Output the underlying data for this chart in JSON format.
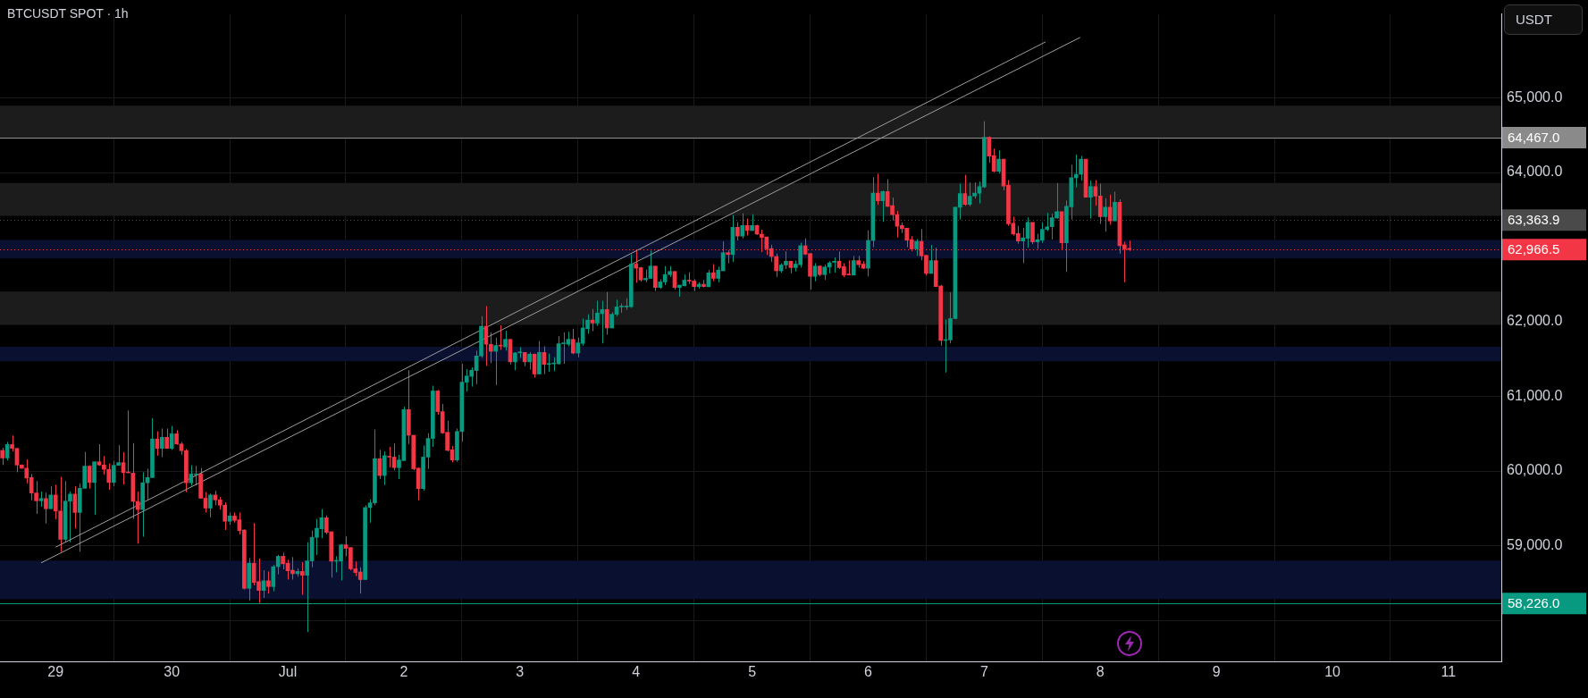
{
  "chart_data": {
    "type": "candlestick",
    "title": "BTCUSDT SPOT · 1h",
    "ylabel": "USDT",
    "legend": false,
    "grid": true,
    "marker": "none",
    "xlim": [
      "--06-28T12:30",
      "--07-11T10:55"
    ],
    "xticks": [
      {
        "value": "--06-29",
        "label": "29"
      },
      {
        "value": "--06-30",
        "label": "30"
      },
      {
        "value": "--07-01",
        "label": "Jul"
      },
      {
        "value": "--07-02",
        "label": "2"
      },
      {
        "value": "--07-03",
        "label": "3"
      },
      {
        "value": "--07-04",
        "label": "4"
      },
      {
        "value": "--07-05",
        "label": "5"
      },
      {
        "value": "--07-06",
        "label": "6"
      },
      {
        "value": "--07-07",
        "label": "7"
      },
      {
        "value": "--07-08",
        "label": "8"
      },
      {
        "value": "--07-09",
        "label": "9"
      },
      {
        "value": "--07-10",
        "label": "10"
      },
      {
        "value": "--07-11",
        "label": "11"
      }
    ],
    "ylim": [
      57450,
      66125
    ],
    "yticks": [
      {
        "value": 58000,
        "label": null
      },
      {
        "value": 59000,
        "label": "59,000.0"
      },
      {
        "value": 60000,
        "label": "60,000.0"
      },
      {
        "value": 61000,
        "label": "61,000.0"
      },
      {
        "value": 62000,
        "label": "62,000.0"
      },
      {
        "value": 63000,
        "label": null
      },
      {
        "value": 64000,
        "label": "64,000.0"
      },
      {
        "value": 65000,
        "label": "65,000.0"
      }
    ],
    "bands": [
      {
        "axis": "y",
        "from": 64450,
        "to": 64895,
        "color": "#1c1c1c"
      },
      {
        "axis": "y",
        "from": 63420,
        "to": 63860,
        "color": "#1c1c1c"
      },
      {
        "axis": "y",
        "from": 62850,
        "to": 63095,
        "color": "#0a1030"
      },
      {
        "axis": "y",
        "from": 61960,
        "to": 62405,
        "color": "#1c1c1c"
      },
      {
        "axis": "y",
        "from": 61470,
        "to": 61665,
        "color": "#0a1030"
      },
      {
        "axis": "y",
        "from": 58285,
        "to": 58800,
        "color": "#0a1030"
      }
    ],
    "ref_lines": [
      {
        "axis": "y",
        "value": 64467,
        "label": "64,467.0",
        "color": "#8a8a8a",
        "line_style": "solid"
      },
      {
        "axis": "y",
        "value": 63363.9,
        "label": "63,363.9",
        "color": "#4a4a4a",
        "line_style": "dotted"
      },
      {
        "axis": "y",
        "value": 62966.5,
        "label": "62,966.5",
        "color": "#f23645",
        "line_style": "dotted"
      },
      {
        "axis": "y",
        "value": 58226,
        "label": "58,226.0",
        "color": "#089981",
        "line_style": "solid"
      }
    ],
    "series": [
      {
        "type": "line",
        "color": "#9e9e9e",
        "x": [
          "--06-29T00:00",
          "--07-07T12:40"
        ],
        "values": [
          58980,
          65750
        ]
      },
      {
        "type": "line",
        "color": "#9e9e9e",
        "x": [
          "--06-28T21:00",
          "--07-07T19:50"
        ],
        "values": [
          58770,
          65810
        ]
      },
      {
        "type": "candlestick",
        "x": [
          "--06-28T13:00",
          "--06-28T14:00",
          "--06-28T15:00",
          "--06-28T16:00",
          "--06-28T17:00",
          "--06-28T18:00",
          "--06-28T19:00",
          "--06-28T20:00",
          "--06-28T21:00",
          "--06-28T22:00",
          "--06-28T23:00",
          "--06-29T00:00",
          "--06-29T01:00",
          "--06-29T02:00",
          "--06-29T03:00",
          "--06-29T04:00",
          "--06-29T05:00",
          "--06-29T06:00",
          "--06-29T07:00",
          "--06-29T08:00",
          "--06-29T09:00",
          "--06-29T10:00",
          "--06-29T11:00",
          "--06-29T12:00",
          "--06-29T13:00",
          "--06-29T14:00",
          "--06-29T15:00",
          "--06-29T16:00",
          "--06-29T17:00",
          "--06-29T18:00",
          "--06-29T19:00",
          "--06-29T20:00",
          "--06-29T21:00",
          "--06-29T22:00",
          "--06-29T23:00",
          "--06-30T00:00",
          "--06-30T01:00",
          "--06-30T02:00",
          "--06-30T03:00",
          "--06-30T04:00",
          "--06-30T05:00",
          "--06-30T06:00",
          "--06-30T07:00",
          "--06-30T08:00",
          "--06-30T09:00",
          "--06-30T10:00",
          "--06-30T11:00",
          "--06-30T12:00",
          "--06-30T13:00",
          "--06-30T14:00",
          "--06-30T15:00",
          "--06-30T16:00",
          "--06-30T17:00",
          "--06-30T18:00",
          "--06-30T19:00",
          "--06-30T20:00",
          "--06-30T21:00",
          "--06-30T22:00",
          "--06-30T23:00",
          "--07-01T00:00",
          "--07-01T01:00",
          "--07-01T02:00",
          "--07-01T03:00",
          "--07-01T04:00",
          "--07-01T05:00",
          "--07-01T06:00",
          "--07-01T07:00",
          "--07-01T08:00",
          "--07-01T09:00",
          "--07-01T10:00",
          "--07-01T11:00",
          "--07-01T12:00",
          "--07-01T13:00",
          "--07-01T14:00",
          "--07-01T15:00",
          "--07-01T16:00",
          "--07-01T17:00",
          "--07-01T18:00",
          "--07-01T19:00",
          "--07-01T20:00",
          "--07-01T21:00",
          "--07-01T22:00",
          "--07-01T23:00",
          "--07-02T00:00",
          "--07-02T01:00",
          "--07-02T02:00",
          "--07-02T03:00",
          "--07-02T04:00",
          "--07-02T05:00",
          "--07-02T06:00",
          "--07-02T07:00",
          "--07-02T08:00",
          "--07-02T09:00",
          "--07-02T10:00",
          "--07-02T11:00",
          "--07-02T12:00",
          "--07-02T13:00",
          "--07-02T14:00",
          "--07-02T15:00",
          "--07-02T16:00",
          "--07-02T17:00",
          "--07-02T18:00",
          "--07-02T19:00",
          "--07-02T20:00",
          "--07-02T21:00",
          "--07-02T22:00",
          "--07-02T23:00",
          "--07-03T00:00",
          "--07-03T01:00",
          "--07-03T02:00",
          "--07-03T03:00",
          "--07-03T04:00",
          "--07-03T05:00",
          "--07-03T06:00",
          "--07-03T07:00",
          "--07-03T08:00",
          "--07-03T09:00",
          "--07-03T10:00",
          "--07-03T11:00",
          "--07-03T12:00",
          "--07-03T13:00",
          "--07-03T14:00",
          "--07-03T15:00",
          "--07-03T16:00",
          "--07-03T17:00",
          "--07-03T18:00",
          "--07-03T19:00",
          "--07-03T20:00",
          "--07-03T21:00",
          "--07-03T22:00",
          "--07-03T23:00",
          "--07-04T00:00",
          "--07-04T01:00",
          "--07-04T02:00",
          "--07-04T03:00",
          "--07-04T04:00",
          "--07-04T05:00",
          "--07-04T06:00",
          "--07-04T07:00",
          "--07-04T08:00",
          "--07-04T09:00",
          "--07-04T10:00",
          "--07-04T11:00",
          "--07-04T12:00",
          "--07-04T13:00",
          "--07-04T14:00",
          "--07-04T15:00",
          "--07-04T16:00",
          "--07-04T17:00",
          "--07-04T18:00",
          "--07-04T19:00",
          "--07-04T20:00",
          "--07-04T21:00",
          "--07-04T22:00",
          "--07-04T23:00",
          "--07-05T00:00",
          "--07-05T01:00",
          "--07-05T02:00",
          "--07-05T03:00",
          "--07-05T04:00",
          "--07-05T05:00",
          "--07-05T06:00",
          "--07-05T07:00",
          "--07-05T08:00",
          "--07-05T09:00",
          "--07-05T10:00",
          "--07-05T11:00",
          "--07-05T12:00",
          "--07-05T13:00",
          "--07-05T14:00",
          "--07-05T15:00",
          "--07-05T16:00",
          "--07-05T17:00",
          "--07-05T18:00",
          "--07-05T19:00",
          "--07-05T20:00",
          "--07-05T21:00",
          "--07-05T22:00",
          "--07-05T23:00",
          "--07-06T00:00",
          "--07-06T01:00",
          "--07-06T02:00",
          "--07-06T03:00",
          "--07-06T04:00",
          "--07-06T05:00",
          "--07-06T06:00",
          "--07-06T07:00",
          "--07-06T08:00",
          "--07-06T09:00",
          "--07-06T10:00",
          "--07-06T11:00",
          "--07-06T12:00",
          "--07-06T13:00",
          "--07-06T14:00",
          "--07-06T15:00",
          "--07-06T16:00",
          "--07-06T17:00",
          "--07-06T18:00",
          "--07-06T19:00",
          "--07-06T20:00",
          "--07-06T21:00",
          "--07-06T22:00",
          "--07-06T23:00",
          "--07-07T00:00",
          "--07-07T01:00",
          "--07-07T02:00",
          "--07-07T03:00",
          "--07-07T04:00",
          "--07-07T05:00",
          "--07-07T06:00",
          "--07-07T07:00",
          "--07-07T08:00",
          "--07-07T09:00",
          "--07-07T10:00",
          "--07-07T11:00",
          "--07-07T12:00",
          "--07-07T13:00",
          "--07-07T14:00",
          "--07-07T15:00",
          "--07-07T16:00",
          "--07-07T17:00",
          "--07-07T18:00",
          "--07-07T19:00",
          "--07-07T20:00",
          "--07-07T21:00",
          "--07-07T22:00",
          "--07-07T23:00",
          "--07-08T00:00",
          "--07-08T01:00",
          "--07-08T02:00",
          "--07-08T03:00",
          "--07-08T04:00",
          "--07-08T05:00",
          "--07-08T06:00"
        ],
        "ohlc": [
          [
            60277,
            60312,
            60081,
            60175
          ],
          [
            60175,
            60390,
            60140,
            60355
          ],
          [
            60355,
            60476,
            60265,
            60304
          ],
          [
            60304,
            60304,
            59984,
            60081
          ],
          [
            60081,
            60089,
            60031,
            60038
          ],
          [
            60038,
            60155,
            59835,
            59906
          ],
          [
            59913,
            59960,
            59609,
            59706
          ],
          [
            59706,
            59866,
            59425,
            59601
          ],
          [
            59601,
            59726,
            59523,
            59632
          ],
          [
            59632,
            59710,
            59296,
            59495
          ],
          [
            59495,
            59796,
            59495,
            59679
          ],
          [
            59679,
            59816,
            59355,
            59464
          ],
          [
            59464,
            59921,
            58917,
            59085
          ],
          [
            59085,
            59866,
            59046,
            59597
          ],
          [
            59597,
            59726,
            59046,
            59691
          ],
          [
            59691,
            59796,
            59230,
            59445
          ],
          [
            59445,
            59835,
            58917,
            59769
          ],
          [
            59769,
            60257,
            59769,
            60066
          ],
          [
            60066,
            60077,
            59765,
            59847
          ],
          [
            59847,
            60124,
            59413,
            60124
          ],
          [
            60124,
            60359,
            60070,
            60081
          ],
          [
            60081,
            60202,
            59952,
            60023
          ],
          [
            60023,
            60101,
            59749,
            59847
          ],
          [
            59847,
            60136,
            59796,
            60077
          ],
          [
            60077,
            60347,
            60077,
            60113
          ],
          [
            60113,
            60253,
            59820,
            59980
          ],
          [
            59980,
            60812,
            59976,
            59976
          ],
          [
            59972,
            60374,
            59359,
            59593
          ],
          [
            59593,
            59726,
            59027,
            59484
          ],
          [
            59484,
            59984,
            59120,
            59843
          ],
          [
            59843,
            60031,
            59613,
            59913
          ],
          [
            59913,
            60710,
            59906,
            60429
          ],
          [
            60429,
            60531,
            60206,
            60304
          ],
          [
            60304,
            60570,
            60187,
            60452
          ],
          [
            60452,
            60570,
            60296,
            60304
          ],
          [
            60304,
            60605,
            60284,
            60499
          ],
          [
            60499,
            60546,
            60351,
            60363
          ],
          [
            60363,
            60390,
            60218,
            60273
          ],
          [
            60273,
            60296,
            59718,
            59843
          ],
          [
            59843,
            60077,
            59804,
            59960
          ],
          [
            59950,
            60070,
            59810,
            59960
          ],
          [
            59960,
            60042,
            59632,
            59636
          ],
          [
            59636,
            59718,
            59445,
            59503
          ],
          [
            59503,
            59698,
            59378,
            59679
          ],
          [
            59679,
            59738,
            59542,
            59613
          ],
          [
            59613,
            59652,
            59484,
            59542
          ],
          [
            59542,
            59581,
            59210,
            59327
          ],
          [
            59327,
            59445,
            59280,
            59398
          ],
          [
            59398,
            59445,
            59308,
            59339
          ],
          [
            59347,
            59445,
            59152,
            59202
          ],
          [
            59210,
            59218,
            58413,
            58428
          ],
          [
            58428,
            58835,
            58264,
            58765
          ],
          [
            58765,
            59303,
            58468,
            58507
          ],
          [
            58519,
            58827,
            58233,
            58401
          ],
          [
            58401,
            58671,
            58300,
            58530
          ],
          [
            58530,
            58655,
            58358,
            58452
          ],
          [
            58452,
            58741,
            58390,
            58718
          ],
          [
            58718,
            58878,
            58616,
            58858
          ],
          [
            58858,
            58905,
            58683,
            58757
          ],
          [
            58765,
            58811,
            58546,
            58663
          ],
          [
            58671,
            58847,
            58546,
            58624
          ],
          [
            58624,
            58694,
            58585,
            58655
          ],
          [
            58655,
            58780,
            58343,
            58604
          ],
          [
            58604,
            59046,
            57843,
            58796
          ],
          [
            58796,
            59202,
            58710,
            59112
          ],
          [
            59112,
            59358,
            58878,
            59233
          ],
          [
            59226,
            59491,
            59101,
            59374
          ],
          [
            59374,
            59405,
            59151,
            59179
          ],
          [
            59187,
            59187,
            58573,
            58792
          ],
          [
            58792,
            58858,
            58643,
            58800
          ],
          [
            58792,
            59023,
            58534,
            59011
          ],
          [
            59011,
            59124,
            58858,
            58964
          ],
          [
            58975,
            58975,
            58671,
            58690
          ],
          [
            58690,
            58788,
            58593,
            58640
          ],
          [
            58648,
            58710,
            58358,
            58546
          ],
          [
            58546,
            59542,
            58546,
            59511
          ],
          [
            59511,
            59620,
            59308,
            59573
          ],
          [
            59573,
            60558,
            59542,
            60167
          ],
          [
            60167,
            60284,
            59894,
            59940
          ],
          [
            59940,
            60265,
            59812,
            60206
          ],
          [
            60198,
            60323,
            60050,
            60187
          ],
          [
            60187,
            60370,
            60011,
            60046
          ],
          [
            60046,
            60218,
            59894,
            60148
          ],
          [
            60140,
            60862,
            60140,
            60823
          ],
          [
            60823,
            61351,
            60362,
            60480
          ],
          [
            60480,
            60480,
            60011,
            60030
          ],
          [
            60038,
            60050,
            59609,
            59765
          ],
          [
            59765,
            60343,
            59738,
            60187
          ],
          [
            60187,
            60507,
            60030,
            60437
          ],
          [
            60437,
            61144,
            60323,
            61073
          ],
          [
            61073,
            61085,
            60753,
            60796
          ],
          [
            60796,
            60898,
            60499,
            60511
          ],
          [
            60519,
            60675,
            60265,
            60277
          ],
          [
            60284,
            60335,
            60116,
            60148
          ],
          [
            60148,
            60570,
            60124,
            60530
          ],
          [
            60530,
            61437,
            60394,
            61191
          ],
          [
            61191,
            61366,
            61066,
            61273
          ],
          [
            61269,
            61390,
            61132,
            61351
          ],
          [
            61347,
            61613,
            61163,
            61542
          ],
          [
            61542,
            62074,
            61515,
            61941
          ],
          [
            61941,
            62210,
            61409,
            61699
          ],
          [
            61699,
            61859,
            61445,
            61605
          ],
          [
            61605,
            61788,
            61152,
            61683
          ],
          [
            61683,
            61952,
            61624,
            61675
          ],
          [
            61663,
            61878,
            61613,
            61765
          ],
          [
            61765,
            61765,
            61429,
            61464
          ],
          [
            61464,
            61593,
            61351,
            61581
          ],
          [
            61585,
            61659,
            61515,
            61589
          ],
          [
            61589,
            61593,
            61406,
            61464
          ],
          [
            61464,
            61593,
            61359,
            61566
          ],
          [
            61566,
            61574,
            61253,
            61300
          ],
          [
            61300,
            61742,
            61300,
            61589
          ],
          [
            61589,
            61671,
            61300,
            61429
          ],
          [
            61429,
            61574,
            61331,
            61437
          ],
          [
            61437,
            61527,
            61339,
            61449
          ],
          [
            61437,
            61808,
            61429,
            61706
          ],
          [
            61706,
            61859,
            61437,
            61710
          ],
          [
            61699,
            61867,
            61671,
            61765
          ],
          [
            61765,
            61906,
            61566,
            61581
          ],
          [
            61581,
            61788,
            61523,
            61718
          ],
          [
            61710,
            62043,
            61679,
            61917
          ],
          [
            61906,
            62101,
            61839,
            62023
          ],
          [
            62023,
            62171,
            61874,
            61984
          ],
          [
            61984,
            62281,
            61945,
            62117
          ],
          [
            62109,
            62281,
            61710,
            62164
          ],
          [
            62164,
            62398,
            61827,
            61917
          ],
          [
            61917,
            62128,
            61913,
            62101
          ],
          [
            62101,
            62296,
            62074,
            62199
          ],
          [
            62199,
            62246,
            62121,
            62210
          ],
          [
            62199,
            62316,
            62160,
            62210
          ],
          [
            62203,
            62902,
            62187,
            62773
          ],
          [
            62773,
            62961,
            62523,
            62718
          ],
          [
            62726,
            62734,
            62539,
            62562
          ],
          [
            62562,
            62699,
            62531,
            62582
          ],
          [
            62582,
            62953,
            62578,
            62746
          ],
          [
            62746,
            62746,
            62414,
            62460
          ],
          [
            62460,
            62570,
            62441,
            62535
          ],
          [
            62535,
            62746,
            62492,
            62632
          ],
          [
            62632,
            62746,
            62601,
            62675
          ],
          [
            62675,
            62675,
            62433,
            62460
          ],
          [
            62460,
            62492,
            62335,
            62492
          ],
          [
            62484,
            62632,
            62472,
            62558
          ],
          [
            62558,
            62664,
            62507,
            62546
          ],
          [
            62546,
            62570,
            62414,
            62472
          ],
          [
            62472,
            62531,
            62445,
            62503
          ],
          [
            62503,
            62562,
            62460,
            62472
          ],
          [
            62469,
            62695,
            62469,
            62656
          ],
          [
            62656,
            62773,
            62543,
            62582
          ],
          [
            62582,
            62738,
            62531,
            62691
          ],
          [
            62683,
            63078,
            62683,
            62926
          ],
          [
            62926,
            62961,
            62785,
            62902
          ],
          [
            62902,
            63429,
            62801,
            63265
          ],
          [
            63265,
            63336,
            63090,
            63148
          ],
          [
            63148,
            63453,
            63117,
            63289
          ],
          [
            63289,
            63382,
            63156,
            63222
          ],
          [
            63222,
            63441,
            63222,
            63289
          ],
          [
            63289,
            63300,
            63164,
            63175
          ],
          [
            63175,
            63234,
            62934,
            63129
          ],
          [
            63137,
            63137,
            62894,
            62977
          ],
          [
            62981,
            63031,
            62804,
            62875
          ],
          [
            62875,
            62914,
            62601,
            62683
          ],
          [
            62683,
            62785,
            62656,
            62761
          ],
          [
            62761,
            62945,
            62707,
            62812
          ],
          [
            62812,
            62812,
            62648,
            62726
          ],
          [
            62726,
            62820,
            62675,
            62773
          ],
          [
            62765,
            63058,
            62726,
            63019
          ],
          [
            63019,
            63117,
            62894,
            62906
          ],
          [
            62914,
            62922,
            62433,
            62609
          ],
          [
            62609,
            62785,
            62543,
            62746
          ],
          [
            62746,
            62757,
            62609,
            62632
          ],
          [
            62632,
            62765,
            62562,
            62734
          ],
          [
            62734,
            62812,
            62648,
            62789
          ],
          [
            62797,
            62863,
            62660,
            62812
          ],
          [
            62812,
            62941,
            62707,
            62726
          ],
          [
            62738,
            62785,
            62597,
            62625
          ],
          [
            62632,
            62824,
            62621,
            62628
          ],
          [
            62625,
            62883,
            62625,
            62820
          ],
          [
            62820,
            62883,
            62726,
            62765
          ],
          [
            62773,
            62812,
            62707,
            62718
          ],
          [
            62718,
            63226,
            62609,
            63090
          ],
          [
            63090,
            63937,
            63000,
            63723
          ],
          [
            63723,
            63984,
            63566,
            63621
          ],
          [
            63621,
            63758,
            63340,
            63746
          ],
          [
            63746,
            63910,
            63539,
            63547
          ],
          [
            63558,
            63664,
            63359,
            63437
          ],
          [
            63437,
            63488,
            63129,
            63281
          ],
          [
            63289,
            63332,
            63187,
            63246
          ],
          [
            63254,
            63254,
            63000,
            63093
          ],
          [
            63101,
            63148,
            62945,
            62977
          ],
          [
            62977,
            63109,
            62883,
            63078
          ],
          [
            63078,
            63242,
            62824,
            62883
          ],
          [
            62890,
            62898,
            62621,
            62648
          ],
          [
            62648,
            63031,
            62648,
            62820
          ],
          [
            62820,
            62992,
            62472,
            62472
          ],
          [
            62480,
            62492,
            61679,
            61750
          ],
          [
            61750,
            62031,
            61320,
            61757
          ],
          [
            61757,
            62394,
            61710,
            62043
          ],
          [
            62043,
            63535,
            62035,
            63535
          ],
          [
            63535,
            63851,
            63371,
            63719
          ],
          [
            63719,
            63969,
            63555,
            63574
          ],
          [
            63574,
            63867,
            63547,
            63683
          ],
          [
            63683,
            63867,
            63652,
            63723
          ],
          [
            63723,
            63879,
            63586,
            63812
          ],
          [
            63808,
            64688,
            63793,
            64473
          ],
          [
            64473,
            64484,
            64133,
            64219
          ],
          [
            64227,
            64320,
            64004,
            64016
          ],
          [
            64016,
            64297,
            63984,
            64180
          ],
          [
            64180,
            64180,
            63762,
            63820
          ],
          [
            63828,
            63898,
            63285,
            63312
          ],
          [
            63320,
            63410,
            63156,
            63176
          ],
          [
            63183,
            63285,
            63047,
            63082
          ],
          [
            63082,
            63258,
            62785,
            63125
          ],
          [
            63117,
            63398,
            62992,
            63332
          ],
          [
            63332,
            63332,
            63039,
            63070
          ],
          [
            63070,
            63180,
            62976,
            63101
          ],
          [
            63093,
            63332,
            63058,
            63238
          ],
          [
            63238,
            63461,
            63215,
            63273
          ],
          [
            63273,
            63449,
            63105,
            63394
          ],
          [
            63390,
            63859,
            63383,
            63476
          ],
          [
            63476,
            63476,
            62972,
            63058
          ],
          [
            63058,
            63625,
            62668,
            63547
          ],
          [
            63539,
            64105,
            63371,
            63930
          ],
          [
            63930,
            64242,
            63801,
            63977
          ],
          [
            63977,
            64223,
            63891,
            64180
          ],
          [
            64180,
            64180,
            63668,
            63668
          ],
          [
            63668,
            63891,
            63383,
            63812
          ],
          [
            63812,
            63898,
            63555,
            63684
          ],
          [
            63684,
            63851,
            63312,
            63410
          ],
          [
            63410,
            63656,
            63207,
            63535
          ],
          [
            63535,
            63703,
            63301,
            63351
          ],
          [
            63351,
            63742,
            63351,
            63601
          ],
          [
            63601,
            63640,
            62914,
            63019
          ],
          [
            63031,
            63070,
            62531,
            62976
          ],
          [
            62984,
            63086,
            62949,
            62966.5
          ]
        ],
        "colors": [
          "#f23645",
          "#089981",
          "#f23645",
          "#f23645",
          "#f23645",
          "#f23645",
          "#f23645",
          "#f23645",
          "#089981",
          "#f23645",
          "#089981",
          "#f23645",
          "#f23645",
          "#089981",
          "#089981",
          "#f23645",
          "#089981",
          "#089981",
          "#f23645",
          "#089981",
          "#f23645",
          "#f23645",
          "#f23645",
          "#089981",
          "#089981",
          "#f23645",
          "#f23645",
          "#f23645",
          "#f23645",
          "#089981",
          "#089981",
          "#089981",
          "#f23645",
          "#089981",
          "#f23645",
          "#089981",
          "#f23645",
          "#f23645",
          "#f23645",
          "#089981",
          "#089981",
          "#f23645",
          "#f23645",
          "#089981",
          "#f23645",
          "#f23645",
          "#f23645",
          "#089981",
          "#f23645",
          "#f23645",
          "#f23645",
          "#089981",
          "#f23645",
          "#f23645",
          "#089981",
          "#f23645",
          "#089981",
          "#089981",
          "#f23645",
          "#f23645",
          "#f23645",
          "#089981",
          "#f23645",
          "#089981",
          "#089981",
          "#089981",
          "#089981",
          "#f23645",
          "#f23645",
          "#089981",
          "#089981",
          "#f23645",
          "#f23645",
          "#f23645",
          "#f23645",
          "#089981",
          "#089981",
          "#089981",
          "#f23645",
          "#089981",
          "#f23645",
          "#f23645",
          "#089981",
          "#089981",
          "#f23645",
          "#f23645",
          "#f23645",
          "#089981",
          "#089981",
          "#089981",
          "#f23645",
          "#f23645",
          "#f23645",
          "#f23645",
          "#089981",
          "#089981",
          "#089981",
          "#089981",
          "#089981",
          "#089981",
          "#f23645",
          "#f23645",
          "#089981",
          "#f23645",
          "#089981",
          "#f23645",
          "#089981",
          "#089981",
          "#f23645",
          "#089981",
          "#f23645",
          "#089981",
          "#f23645",
          "#089981",
          "#089981",
          "#089981",
          "#089981",
          "#089981",
          "#f23645",
          "#089981",
          "#089981",
          "#089981",
          "#f23645",
          "#089981",
          "#089981",
          "#f23645",
          "#089981",
          "#089981",
          "#089981",
          "#089981",
          "#089981",
          "#f23645",
          "#f23645",
          "#089981",
          "#089981",
          "#f23645",
          "#089981",
          "#089981",
          "#089981",
          "#f23645",
          "#089981",
          "#089981",
          "#f23645",
          "#f23645",
          "#089981",
          "#f23645",
          "#089981",
          "#f23645",
          "#089981",
          "#089981",
          "#f23645",
          "#089981",
          "#f23645",
          "#089981",
          "#f23645",
          "#089981",
          "#f23645",
          "#f23645",
          "#f23645",
          "#f23645",
          "#f23645",
          "#089981",
          "#089981",
          "#f23645",
          "#089981",
          "#089981",
          "#f23645",
          "#f23645",
          "#089981",
          "#f23645",
          "#089981",
          "#089981",
          "#089981",
          "#f23645",
          "#f23645",
          "#f23645",
          "#089981",
          "#f23645",
          "#f23645",
          "#089981",
          "#089981",
          "#f23645",
          "#089981",
          "#f23645",
          "#f23645",
          "#f23645",
          "#f23645",
          "#f23645",
          "#f23645",
          "#089981",
          "#f23645",
          "#f23645",
          "#089981",
          "#f23645",
          "#f23645",
          "#089981",
          "#089981",
          "#089981",
          "#089981",
          "#f23645",
          "#089981",
          "#089981",
          "#089981",
          "#089981",
          "#f23645",
          "#f23645",
          "#089981",
          "#f23645",
          "#f23645",
          "#f23645",
          "#f23645",
          "#089981",
          "#089981",
          "#f23645",
          "#089981",
          "#089981",
          "#089981",
          "#089981",
          "#089981",
          "#f23645",
          "#089981",
          "#089981",
          "#089981",
          "#089981",
          "#f23645",
          "#089981",
          "#f23645",
          "#f23645",
          "#089981",
          "#f23645",
          "#089981",
          "#f23645",
          "#f23645",
          "#f23645"
        ]
      }
    ]
  }
}
